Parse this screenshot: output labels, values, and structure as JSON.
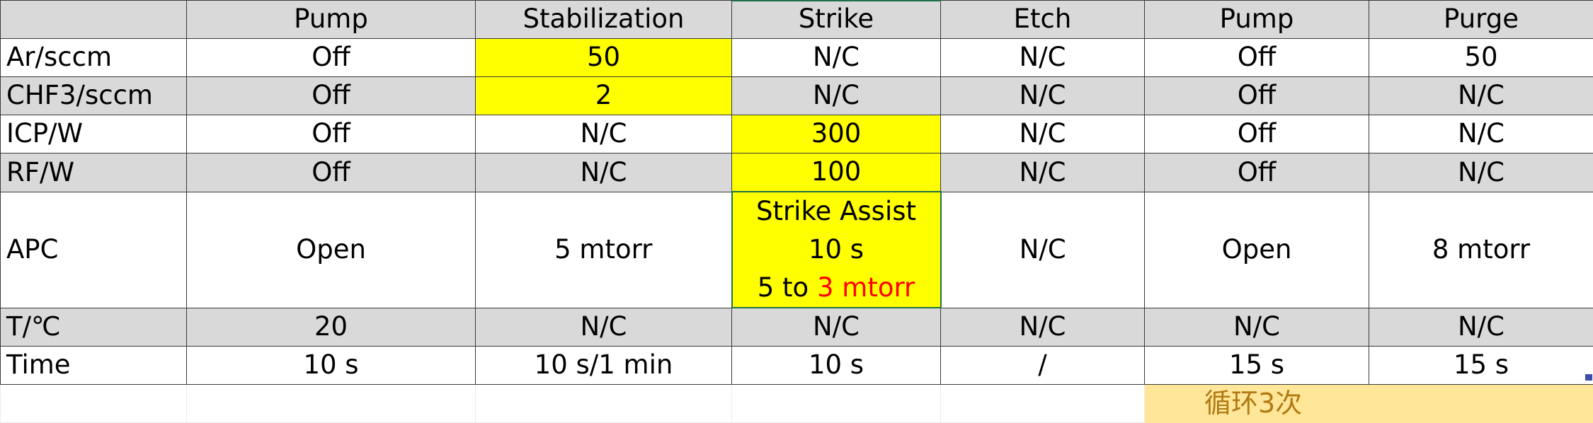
{
  "columns": [
    "",
    "Pump",
    "Stabilization",
    "Strike",
    "Etch",
    "Pump",
    "Purge"
  ],
  "rows": [
    {
      "label": "Ar/sccm",
      "cells": [
        "Off",
        "50",
        "N/C",
        "N/C",
        "Off",
        "50"
      ]
    },
    {
      "label": "CHF3/sccm",
      "cells": [
        "Off",
        "2",
        "N/C",
        "N/C",
        "Off",
        "N/C"
      ]
    },
    {
      "label": "ICP/W",
      "cells": [
        "Off",
        "N/C",
        "300",
        "N/C",
        "Off",
        "N/C"
      ]
    },
    {
      "label": "RF/W",
      "cells": [
        "Off",
        "N/C",
        "100",
        "N/C",
        "Off",
        "N/C"
      ]
    },
    {
      "label": "APC",
      "cells": [
        "Open",
        "5 mtorr",
        "",
        "N/C",
        "Open",
        "8 mtorr"
      ]
    },
    {
      "label": "T/℃",
      "cells": [
        "20",
        "N/C",
        "N/C",
        "N/C",
        "N/C",
        "N/C"
      ]
    },
    {
      "label": "Time",
      "cells": [
        "10 s",
        "10 s/1 min",
        "10 s",
        "/",
        "15 s",
        "15 s"
      ]
    }
  ],
  "strike_apc": {
    "line1": "Strike Assist",
    "line2": "10 s",
    "line3_prefix": "5 to ",
    "line3_red": "3 mtorr"
  },
  "note": "循环3次",
  "colors": {
    "highlight": "#ffff00",
    "gray_row": "#d9d9d9",
    "note_bg": "#ffe699",
    "note_text": "#b07a12",
    "red_text": "#ff0000"
  }
}
